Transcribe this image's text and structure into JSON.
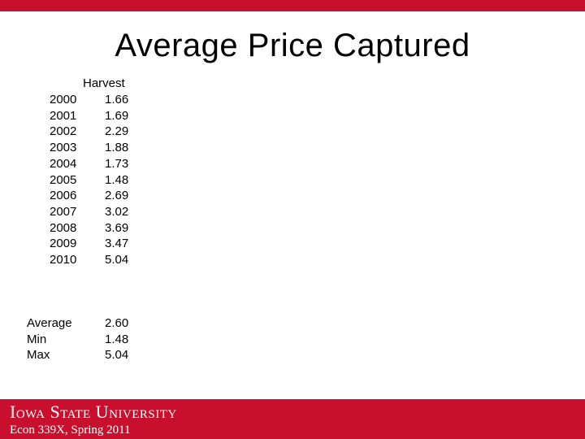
{
  "slide": {
    "title": "Average Price Captured",
    "column_header": "Harvest"
  },
  "rows": [
    {
      "year": "2000",
      "value": "1.66"
    },
    {
      "year": "2001",
      "value": "1.69"
    },
    {
      "year": "2002",
      "value": "2.29"
    },
    {
      "year": "2003",
      "value": "1.88"
    },
    {
      "year": "2004",
      "value": "1.73"
    },
    {
      "year": "2005",
      "value": "1.48"
    },
    {
      "year": "2006",
      "value": "2.69"
    },
    {
      "year": "2007",
      "value": "3.02"
    },
    {
      "year": "2008",
      "value": "3.69"
    },
    {
      "year": "2009",
      "value": "3.47"
    },
    {
      "year": "2010",
      "value": "5.04"
    }
  ],
  "stats": [
    {
      "label": "Average",
      "value": "2.60"
    },
    {
      "label": "Min",
      "value": "1.48"
    },
    {
      "label": "Max",
      "value": "5.04"
    }
  ],
  "footer": {
    "university": "Iowa State University",
    "course": "Econ 339X, Spring 2011"
  },
  "colors": {
    "brand_red": "#c8102e"
  }
}
